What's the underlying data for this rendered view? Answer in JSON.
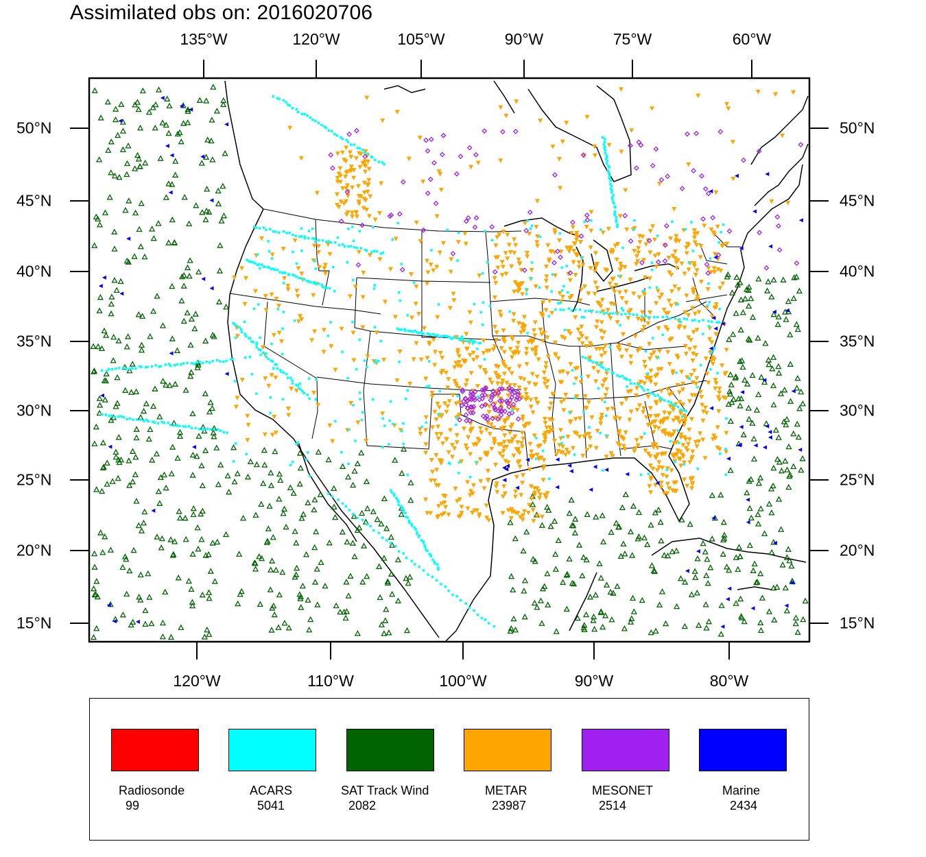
{
  "title": "Assimilated obs on: 2016020706",
  "axes": {
    "top": [
      "135°W",
      "120°W",
      "105°W",
      "90°W",
      "75°W",
      "60°W"
    ],
    "bottom": [
      "120°W",
      "110°W",
      "100°W",
      "90°W",
      "80°W"
    ],
    "left": [
      "50°N",
      "45°N",
      "40°N",
      "35°N",
      "30°N",
      "25°N",
      "20°N",
      "15°N"
    ],
    "right": [
      "50°N",
      "45°N",
      "40°N",
      "35°N",
      "30°N",
      "25°N",
      "20°N",
      "15°N"
    ]
  },
  "legend": [
    {
      "name": "Radiosonde",
      "count": "99",
      "color": "#ff0000"
    },
    {
      "name": "ACARS",
      "count": "5041",
      "color": "#00ffff"
    },
    {
      "name": "SAT Track Wind",
      "count": "2082",
      "color": "#006400"
    },
    {
      "name": "METAR",
      "count": "23987",
      "color": "#ffa500"
    },
    {
      "name": "MESONET",
      "count": "2514",
      "color": "#a020f0"
    },
    {
      "name": "Marine",
      "count": "2434",
      "color": "#0000ff"
    }
  ]
}
